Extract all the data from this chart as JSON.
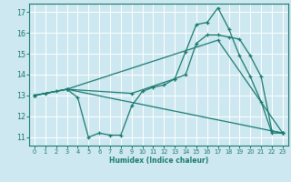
{
  "xlabel": "Humidex (Indice chaleur)",
  "bg_color": "#cde8f0",
  "line_color": "#1a7a6e",
  "grid_color": "#ffffff",
  "xlim": [
    -0.5,
    23.5
  ],
  "ylim": [
    10.6,
    17.4
  ],
  "yticks": [
    11,
    12,
    13,
    14,
    15,
    16,
    17
  ],
  "xticks": [
    0,
    1,
    2,
    3,
    4,
    5,
    6,
    7,
    8,
    9,
    10,
    11,
    12,
    13,
    14,
    15,
    16,
    17,
    18,
    19,
    20,
    21,
    22,
    23
  ],
  "lines": [
    {
      "x": [
        0,
        1,
        2,
        3,
        4,
        5,
        6,
        7,
        8,
        9,
        10,
        11,
        12,
        13,
        14,
        15,
        16,
        17,
        18,
        19,
        20,
        21,
        22,
        23
      ],
      "y": [
        13.0,
        13.1,
        13.2,
        13.3,
        12.9,
        11.0,
        11.2,
        11.1,
        11.1,
        12.5,
        13.2,
        13.4,
        13.5,
        13.8,
        15.1,
        16.4,
        16.5,
        17.2,
        16.2,
        14.9,
        13.9,
        12.7,
        11.2,
        11.2
      ]
    },
    {
      "x": [
        0,
        3,
        9,
        13,
        14,
        15,
        16,
        17,
        18,
        19,
        20,
        21,
        22,
        23
      ],
      "y": [
        13.0,
        13.3,
        13.1,
        13.8,
        14.0,
        15.5,
        15.9,
        15.9,
        15.8,
        15.7,
        14.9,
        13.9,
        11.3,
        11.2
      ]
    },
    {
      "x": [
        0,
        3,
        23
      ],
      "y": [
        13.0,
        13.3,
        11.2
      ]
    },
    {
      "x": [
        0,
        3,
        17,
        23
      ],
      "y": [
        13.0,
        13.3,
        15.65,
        11.2
      ]
    }
  ]
}
